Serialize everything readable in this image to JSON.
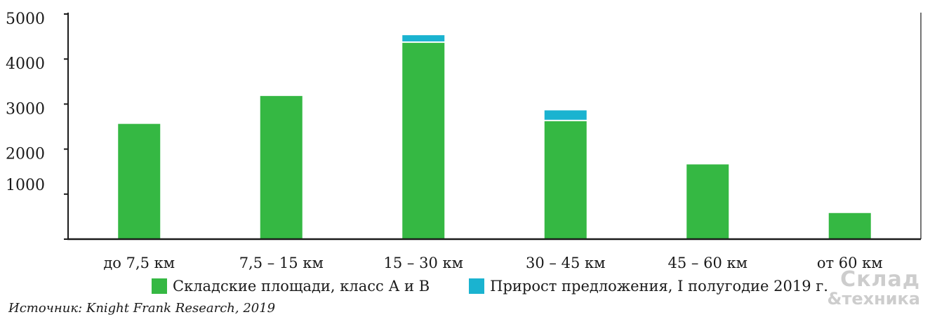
{
  "chart_data": {
    "type": "bar",
    "stacked": true,
    "categories": [
      "до 7,5 км",
      "7,5 – 15 км",
      "15 – 30 км",
      "30 – 45 км",
      "45 – 60 км",
      "от 60 км"
    ],
    "series": [
      {
        "name": "Складские площади, класс А и В",
        "color": "#35b843",
        "values": [
          2560,
          3180,
          4360,
          2620,
          1660,
          580
        ]
      },
      {
        "name": "Прирост предложения, I полугодие 2019 г.",
        "color": "#1ab3d0",
        "values": [
          0,
          0,
          170,
          240,
          0,
          0
        ]
      }
    ],
    "y_tick_labels": [
      "1000",
      "2000",
      "3000",
      "4000",
      "5000"
    ],
    "ylim": [
      0,
      5000
    ],
    "grid": false,
    "legend_position": "bottom"
  },
  "source": "Источник: Knight Frank Research, 2019",
  "logo": {
    "line1": "Склад",
    "line2": "&техника"
  }
}
